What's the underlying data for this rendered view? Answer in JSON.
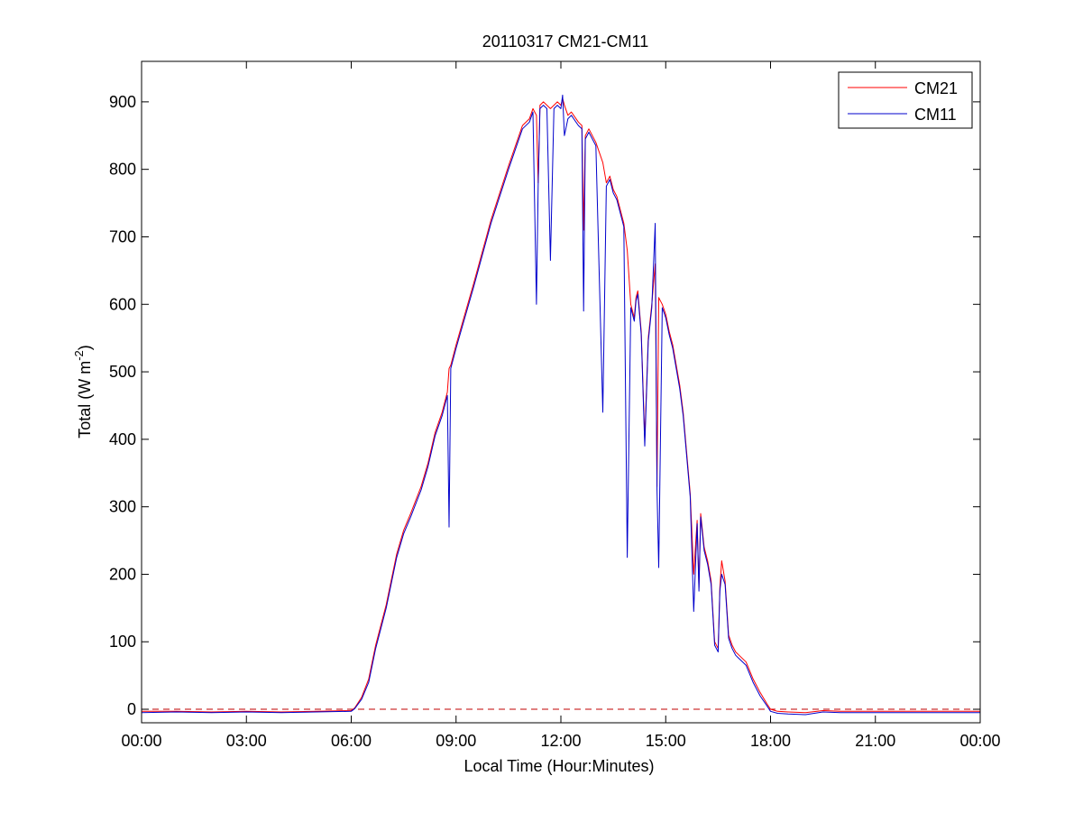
{
  "chart_data": {
    "type": "line",
    "title": "20110317 CM21-CM11",
    "xlabel": "Local Time (Hour:Minutes)",
    "ylabel": {
      "main": "Total (W m",
      "sup": "-2",
      "close": ")"
    },
    "x_unit": "hour",
    "xlim": [
      0,
      24
    ],
    "ylim": [
      -20,
      960
    ],
    "x_ticks": [
      0,
      3,
      6,
      9,
      12,
      15,
      18,
      21,
      24
    ],
    "x_tick_labels": [
      "00:00",
      "03:00",
      "06:00",
      "09:00",
      "12:00",
      "15:00",
      "18:00",
      "21:00",
      "00:00"
    ],
    "y_ticks": [
      0,
      100,
      200,
      300,
      400,
      500,
      600,
      700,
      800,
      900
    ],
    "y_tick_labels": [
      "0",
      "100",
      "200",
      "300",
      "400",
      "500",
      "600",
      "700",
      "800",
      "900"
    ],
    "grid": false,
    "legend_position": "top-right",
    "reference_line": {
      "y": 0,
      "color": "#c00000",
      "style": "dashed"
    },
    "series": [
      {
        "name": "CM21",
        "color": "#ff0000",
        "x": [
          0,
          1,
          2,
          3,
          4,
          5,
          6,
          6.1,
          6.3,
          6.5,
          6.7,
          7,
          7.3,
          7.5,
          7.7,
          8,
          8.2,
          8.4,
          8.6,
          8.75,
          8.8,
          8.85,
          9,
          9.5,
          10,
          10.5,
          10.9,
          11.1,
          11.2,
          11.3,
          11.35,
          11.4,
          11.5,
          11.6,
          11.7,
          11.8,
          11.9,
          12,
          12.05,
          12.1,
          12.2,
          12.3,
          12.5,
          12.6,
          12.65,
          12.7,
          12.8,
          13,
          13.2,
          13.3,
          13.4,
          13.5,
          13.6,
          13.8,
          13.9,
          14,
          14.1,
          14.15,
          14.2,
          14.3,
          14.4,
          14.5,
          14.6,
          14.7,
          14.75,
          14.8,
          14.9,
          15,
          15.1,
          15.2,
          15.3,
          15.4,
          15.5,
          15.6,
          15.7,
          15.8,
          15.9,
          15.95,
          16,
          16.1,
          16.2,
          16.3,
          16.4,
          16.5,
          16.55,
          16.6,
          16.7,
          16.8,
          16.9,
          17,
          17.1,
          17.3,
          17.5,
          17.7,
          17.9,
          18,
          18.2,
          18.5,
          19,
          19.5,
          20,
          21,
          22,
          23,
          24
        ],
        "values": [
          -3,
          -3,
          -4,
          -3,
          -4,
          -3,
          -2,
          2,
          18,
          45,
          95,
          155,
          230,
          265,
          290,
          330,
          365,
          410,
          440,
          470,
          505,
          510,
          540,
          630,
          725,
          805,
          865,
          875,
          890,
          880,
          780,
          895,
          900,
          895,
          890,
          895,
          900,
          895,
          905,
          895,
          880,
          885,
          870,
          865,
          710,
          850,
          860,
          840,
          810,
          780,
          790,
          770,
          760,
          720,
          680,
          600,
          580,
          610,
          620,
          560,
          400,
          550,
          600,
          660,
          330,
          610,
          600,
          585,
          560,
          540,
          510,
          480,
          440,
          380,
          320,
          200,
          280,
          180,
          290,
          240,
          220,
          190,
          100,
          90,
          180,
          220,
          190,
          110,
          95,
          85,
          80,
          70,
          45,
          25,
          8,
          0,
          -3,
          -4,
          -5,
          -2,
          -3,
          -3,
          -3,
          -3,
          -3
        ]
      },
      {
        "name": "CM11",
        "color": "#0000cc",
        "x": [
          0,
          1,
          2,
          3,
          4,
          5,
          6,
          6.1,
          6.3,
          6.5,
          6.7,
          7,
          7.3,
          7.5,
          7.7,
          8,
          8.2,
          8.4,
          8.6,
          8.75,
          8.8,
          8.85,
          9,
          9.5,
          10,
          10.5,
          10.9,
          11.1,
          11.2,
          11.3,
          11.35,
          11.4,
          11.5,
          11.6,
          11.7,
          11.8,
          11.9,
          12,
          12.05,
          12.1,
          12.2,
          12.3,
          12.5,
          12.6,
          12.65,
          12.7,
          12.8,
          13,
          13.2,
          13.3,
          13.4,
          13.5,
          13.6,
          13.8,
          13.9,
          14,
          14.1,
          14.15,
          14.2,
          14.3,
          14.4,
          14.5,
          14.6,
          14.7,
          14.75,
          14.8,
          14.9,
          15,
          15.1,
          15.2,
          15.3,
          15.4,
          15.5,
          15.6,
          15.7,
          15.8,
          15.9,
          15.95,
          16,
          16.1,
          16.2,
          16.3,
          16.4,
          16.5,
          16.55,
          16.6,
          16.7,
          16.8,
          16.9,
          17,
          17.1,
          17.3,
          17.5,
          17.7,
          17.9,
          18,
          18.2,
          18.5,
          19,
          19.5,
          20,
          21,
          22,
          23,
          24
        ],
        "values": [
          -5,
          -4,
          -5,
          -4,
          -5,
          -4,
          -3,
          1,
          15,
          40,
          90,
          150,
          225,
          260,
          285,
          325,
          360,
          405,
          435,
          465,
          270,
          505,
          535,
          625,
          720,
          800,
          860,
          870,
          885,
          600,
          775,
          890,
          895,
          890,
          665,
          890,
          895,
          890,
          910,
          850,
          875,
          880,
          865,
          860,
          590,
          845,
          855,
          835,
          440,
          775,
          785,
          765,
          755,
          715,
          225,
          595,
          575,
          605,
          615,
          555,
          390,
          545,
          595,
          720,
          325,
          210,
          595,
          580,
          555,
          535,
          505,
          475,
          435,
          375,
          315,
          145,
          275,
          175,
          285,
          235,
          215,
          185,
          95,
          85,
          175,
          200,
          185,
          105,
          90,
          80,
          75,
          65,
          40,
          20,
          5,
          -3,
          -6,
          -7,
          -8,
          -4,
          -5,
          -5,
          -5,
          -5,
          -5
        ]
      }
    ]
  }
}
